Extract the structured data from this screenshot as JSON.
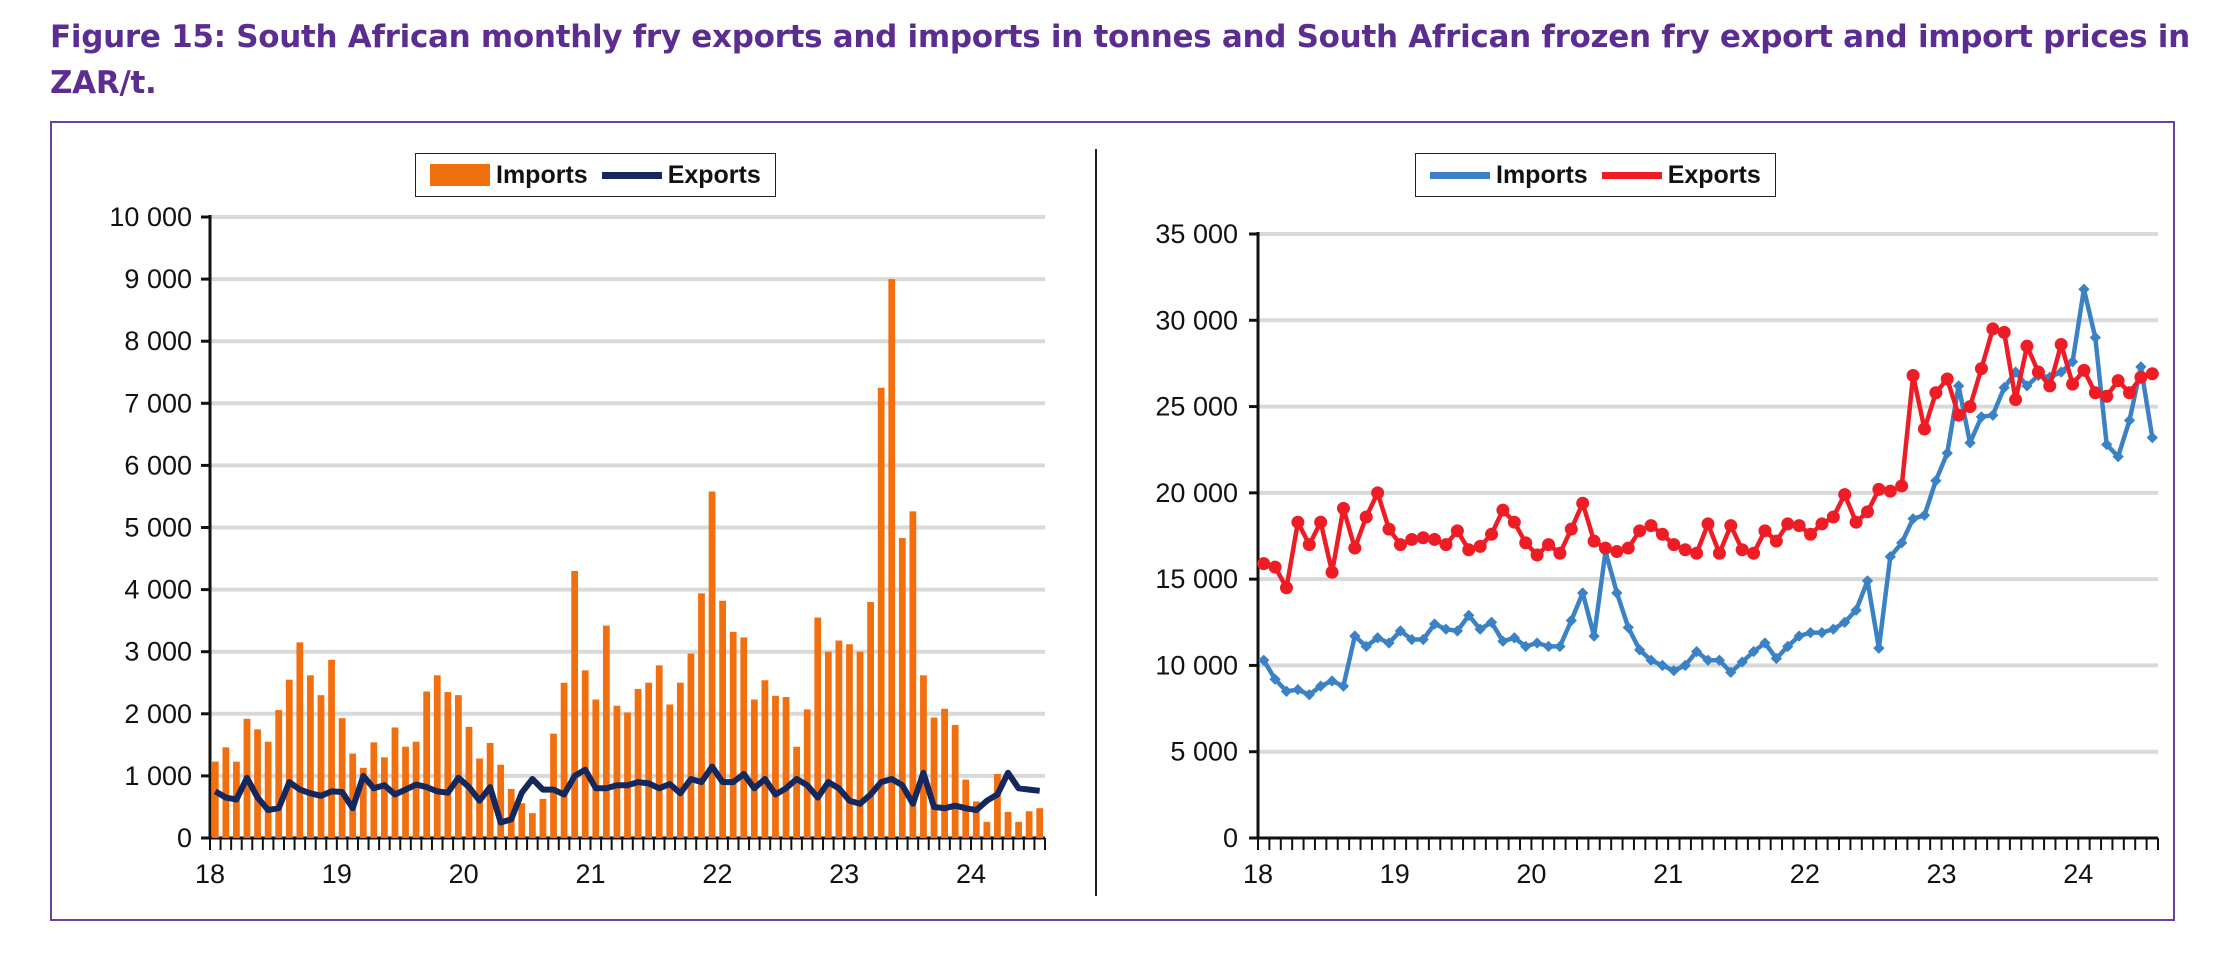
{
  "title": "Figure 15: South African monthly fry exports and imports in tonnes and South African frozen fry export and import prices in ZAR/t.",
  "colors": {
    "title": "#5b2d90",
    "frame": "#6a3fa0",
    "imports_bar": "#f26f10",
    "exports_line_left": "#14285e",
    "imports_line_right": "#3b82c4",
    "exports_line_right": "#ee1c25",
    "grid": "#d9d9d9"
  },
  "chart_data": [
    {
      "type": "bar",
      "title": "",
      "xlabel": "",
      "ylabel": "",
      "ylim": [
        0,
        10000
      ],
      "yticks": [
        0,
        1000,
        2000,
        3000,
        4000,
        5000,
        6000,
        7000,
        8000,
        9000,
        10000
      ],
      "ytick_labels": [
        "0",
        "1 000",
        "2 000",
        "3 000",
        "4 000",
        "5 000",
        "6 000",
        "7 000",
        "8 000",
        "9 000",
        "10 000"
      ],
      "xtick_labels": [
        "18",
        "19",
        "20",
        "21",
        "22",
        "23",
        "24"
      ],
      "x_start": "2018-01",
      "months": 79,
      "legend": "top-center",
      "grid": true,
      "series": [
        {
          "name": "Imports",
          "kind": "bar",
          "values": [
            1230,
            1460,
            1230,
            1920,
            1750,
            1550,
            2060,
            2550,
            3150,
            2620,
            2300,
            2870,
            1930,
            1360,
            1130,
            1540,
            1300,
            1780,
            1470,
            1550,
            2360,
            2620,
            2350,
            2300,
            1790,
            1280,
            1530,
            1180,
            790,
            560,
            400,
            630,
            1680,
            2500,
            4300,
            2700,
            2230,
            3420,
            2130,
            2020,
            2400,
            2500,
            2780,
            2150,
            2500,
            2970,
            3940,
            5580,
            3820,
            3320,
            3230,
            2230,
            2540,
            2290,
            2270,
            1470,
            2070,
            3550,
            3000,
            3180,
            3120,
            3000,
            3800,
            7250,
            9000,
            4830,
            5260,
            2620,
            1940,
            2080,
            1820,
            940,
            590,
            260,
            1030,
            420,
            260,
            430,
            480
          ]
        },
        {
          "name": "Exports",
          "kind": "line",
          "values": [
            750,
            650,
            620,
            970,
            650,
            450,
            480,
            900,
            780,
            720,
            680,
            750,
            740,
            480,
            1000,
            800,
            850,
            700,
            780,
            860,
            820,
            750,
            730,
            970,
            820,
            600,
            820,
            250,
            300,
            730,
            950,
            780,
            780,
            700,
            1000,
            1100,
            800,
            800,
            850,
            850,
            900,
            880,
            800,
            870,
            720,
            950,
            900,
            1150,
            900,
            900,
            1030,
            800,
            950,
            700,
            800,
            950,
            850,
            650,
            900,
            800,
            600,
            550,
            700,
            900,
            950,
            850,
            550,
            1050,
            500,
            480,
            520,
            480,
            450,
            600,
            700,
            1050,
            800,
            780,
            760
          ]
        }
      ]
    },
    {
      "type": "line",
      "title": "",
      "xlabel": "",
      "ylabel": "",
      "ylim": [
        0,
        35000
      ],
      "yticks": [
        0,
        5000,
        10000,
        15000,
        20000,
        25000,
        30000,
        35000
      ],
      "ytick_labels": [
        "0",
        "5 000",
        "10 000",
        "15 000",
        "20 000",
        "25 000",
        "30 000",
        "35 000"
      ],
      "xtick_labels": [
        "18",
        "19",
        "20",
        "21",
        "22",
        "23",
        "24"
      ],
      "x_start": "2018-01",
      "months": 79,
      "legend": "top-center",
      "grid": true,
      "series": [
        {
          "name": "Imports",
          "kind": "line",
          "values": [
            10300,
            9200,
            8500,
            8600,
            8300,
            8800,
            9100,
            8800,
            11700,
            11100,
            11600,
            11300,
            12000,
            11500,
            11500,
            12400,
            12100,
            12000,
            12900,
            12100,
            12500,
            11400,
            11600,
            11100,
            11300,
            11100,
            11100,
            12600,
            14200,
            11700,
            16600,
            14200,
            12200,
            10900,
            10300,
            10000,
            9700,
            10000,
            10800,
            10300,
            10300,
            9600,
            10200,
            10800,
            11300,
            10400,
            11100,
            11700,
            11900,
            11900,
            12100,
            12500,
            13200,
            14900,
            11000,
            16300,
            17100,
            18500,
            18700,
            20700,
            22300,
            26200,
            22900,
            24400,
            24500,
            26100,
            27000,
            26200,
            26800,
            26700,
            27000,
            27600,
            31800,
            29000,
            22800,
            22100,
            24200,
            27300,
            23200
          ]
        },
        {
          "name": "Exports",
          "kind": "line",
          "values": [
            15900,
            15700,
            14500,
            18300,
            17000,
            18300,
            15400,
            19100,
            16800,
            18600,
            20000,
            17900,
            17000,
            17300,
            17400,
            17300,
            17000,
            17800,
            16700,
            16900,
            17600,
            19000,
            18300,
            17100,
            16400,
            17000,
            16500,
            17900,
            19400,
            17200,
            16800,
            16600,
            16800,
            17800,
            18100,
            17600,
            17000,
            16700,
            16500,
            18200,
            16500,
            18100,
            16700,
            16500,
            17800,
            17200,
            18200,
            18100,
            17600,
            18200,
            18600,
            19900,
            18300,
            18900,
            20200,
            20100,
            20400,
            26800,
            23700,
            25800,
            26600,
            24500,
            25000,
            27200,
            29500,
            29300,
            25400,
            28500,
            27000,
            26200,
            28600,
            26300,
            27100,
            25800,
            25600,
            26500,
            25800,
            26700,
            26900
          ]
        }
      ]
    }
  ]
}
